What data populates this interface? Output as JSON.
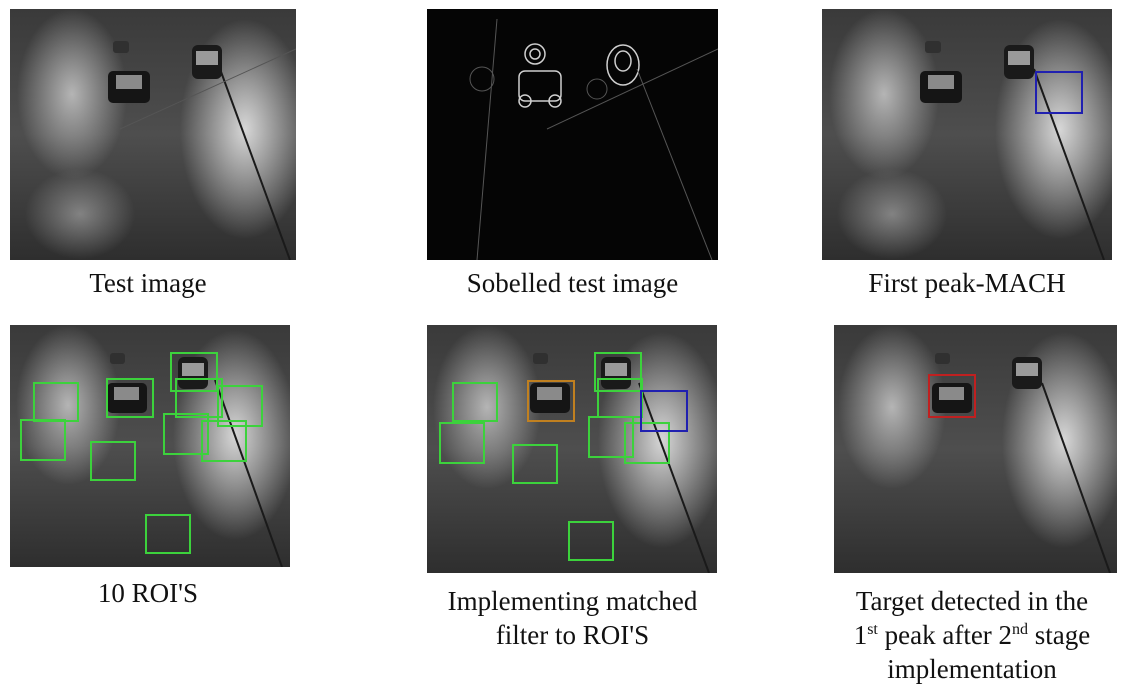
{
  "figure": {
    "panels": [
      {
        "caption": "Test image"
      },
      {
        "caption": "Sobelled test image"
      },
      {
        "caption": "First peak-MACH"
      },
      {
        "caption": "10 ROI'S"
      },
      {
        "caption_line1": "Implementing matched",
        "caption_line2": "filter to ROI'S"
      },
      {
        "caption_line1": "Target detected in the",
        "caption_l2_a": "1",
        "caption_l2_sup1": "st",
        "caption_l2_b": " peak after 2",
        "caption_l2_sup2": "nd",
        "caption_l2_c": " stage",
        "caption_line3": "implementation"
      }
    ],
    "colors": {
      "roi_box": "#3cd23c",
      "peak_box": "#2020b0",
      "target_box": "#c02020"
    }
  }
}
